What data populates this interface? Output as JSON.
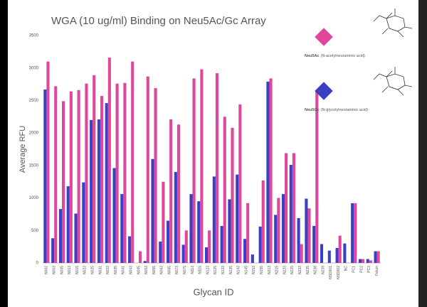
{
  "chart_data": {
    "type": "bar",
    "title": "WGA (10 ug/ml) Binding on Neu5Ac/Gc Array",
    "x_label": "Glycan ID",
    "y_label": "Average RFU",
    "categories": [
      "N002",
      "N003",
      "N005",
      "N013",
      "N015",
      "N023",
      "N025",
      "N031",
      "N033",
      "N035",
      "N041",
      "N043",
      "N045",
      "N053",
      "N055",
      "N063",
      "N065",
      "N073",
      "N075",
      "N113",
      "N115",
      "N123",
      "N125",
      "N133",
      "N135",
      "N143",
      "N145",
      "N153",
      "N155",
      "N213",
      "N215",
      "N223",
      "N225",
      "N233",
      "N235",
      "N238",
      "N239",
      "NSD001",
      "NSD002",
      "NC",
      "PC1",
      "PC2",
      "PC3",
      "Fetuin"
    ],
    "series": [
      {
        "name": "Neu5Gc",
        "description": "(N-glycolylneuraminic acid)",
        "color": "#3b3fc4",
        "values": [
          2670,
          380,
          830,
          1180,
          760,
          1240,
          2200,
          2210,
          2460,
          1460,
          1060,
          410,
          0,
          30,
          1600,
          330,
          650,
          1400,
          280,
          1060,
          950,
          240,
          1330,
          570,
          980,
          1360,
          370,
          130,
          560,
          2790,
          740,
          1060,
          1510,
          690,
          990,
          570,
          290,
          190,
          230,
          300,
          920,
          60,
          60,
          180
        ]
      },
      {
        "name": "Neu5Ac",
        "description": "(N-acetylneuraminic acid)",
        "color": "#e0479a",
        "values": [
          3100,
          2720,
          2490,
          2640,
          2660,
          2760,
          2890,
          2570,
          3160,
          2760,
          2770,
          3100,
          180,
          2870,
          2690,
          1250,
          2210,
          2130,
          500,
          2840,
          2980,
          500,
          2920,
          2250,
          2080,
          2440,
          920,
          0,
          1270,
          2840,
          1000,
          1690,
          1690,
          290,
          840,
          2650,
          0,
          0,
          420,
          0,
          920,
          60,
          40,
          180
        ]
      }
    ],
    "legend_order": [
      1,
      0
    ],
    "ylim": [
      0,
      3500
    ],
    "yticks": [
      0,
      500,
      1000,
      1500,
      2000,
      2500,
      3000,
      3500
    ],
    "grid": false
  }
}
